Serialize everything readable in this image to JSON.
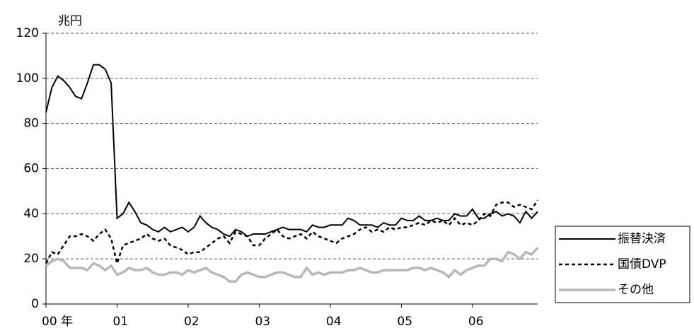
{
  "chart_data": {
    "type": "line",
    "y_label": "兆円",
    "categories": [
      "00 年",
      null,
      null,
      null,
      null,
      null,
      null,
      null,
      null,
      null,
      null,
      null,
      "01",
      null,
      null,
      null,
      null,
      null,
      null,
      null,
      null,
      null,
      null,
      null,
      "02",
      null,
      null,
      null,
      null,
      null,
      null,
      null,
      null,
      null,
      null,
      null,
      "03",
      null,
      null,
      null,
      null,
      null,
      null,
      null,
      null,
      null,
      null,
      null,
      "04",
      null,
      null,
      null,
      null,
      null,
      null,
      null,
      null,
      null,
      null,
      null,
      "05",
      null,
      null,
      null,
      null,
      null,
      null,
      null,
      null,
      null,
      null,
      null,
      "06",
      null,
      null,
      null,
      null,
      null,
      null,
      null,
      null,
      null,
      null,
      null
    ],
    "ylim": [
      0,
      120
    ],
    "yticks": [
      0,
      20,
      40,
      60,
      80,
      100,
      120
    ],
    "grid": true,
    "legend": "bottom-right",
    "series": [
      {
        "name": "振替決済",
        "color": "#000000",
        "style": "solid",
        "values": [
          85,
          96,
          101,
          99,
          96,
          92,
          91,
          98,
          106,
          106,
          104,
          98,
          38,
          40,
          45,
          41,
          36,
          35,
          33,
          32,
          34,
          32,
          33,
          34,
          32,
          34,
          39,
          36,
          34,
          33,
          31,
          30,
          33,
          32,
          30,
          31,
          31,
          31,
          32,
          33,
          34,
          33,
          33,
          33,
          32,
          35,
          34,
          34,
          35,
          35,
          35,
          38,
          37,
          35,
          35,
          35,
          34,
          36,
          35,
          35,
          38,
          37,
          37,
          39,
          37,
          37,
          38,
          37,
          37,
          40,
          39,
          39,
          42,
          38,
          38,
          40,
          41,
          39,
          40,
          39,
          36,
          41,
          38,
          41
        ]
      },
      {
        "name": "国債DVP",
        "color": "#000000",
        "style": "dashed",
        "values": [
          18,
          23,
          22,
          26,
          30,
          30,
          31,
          30,
          28,
          31,
          33,
          29,
          18,
          26,
          27,
          28,
          29,
          31,
          29,
          28,
          29,
          26,
          25,
          24,
          22,
          23,
          23,
          25,
          27,
          29,
          30,
          27,
          32,
          31,
          30,
          26,
          26,
          29,
          31,
          33,
          30,
          29,
          30,
          31,
          29,
          32,
          30,
          29,
          28,
          27,
          29,
          30,
          31,
          33,
          34,
          32,
          33,
          32,
          34,
          33,
          34,
          34,
          35,
          36,
          35,
          37,
          36,
          37,
          35,
          38,
          35,
          36,
          35,
          37,
          40,
          39,
          44,
          45,
          45,
          43,
          44,
          43,
          42,
          46
        ]
      },
      {
        "name": "その他",
        "color": "#b8b8b8",
        "style": "thick",
        "values": [
          17,
          19,
          20,
          19,
          16,
          16,
          16,
          15,
          18,
          17,
          15,
          17,
          13,
          14,
          16,
          15,
          15,
          16,
          14,
          13,
          13,
          14,
          14,
          13,
          15,
          14,
          15,
          16,
          14,
          13,
          12,
          10,
          10,
          13,
          14,
          13,
          12,
          12,
          13,
          14,
          14,
          13,
          12,
          12,
          16,
          13,
          14,
          13,
          14,
          14,
          14,
          15,
          15,
          16,
          15,
          14,
          14,
          15,
          15,
          15,
          15,
          15,
          16,
          16,
          15,
          16,
          15,
          14,
          12,
          15,
          13,
          15,
          16,
          17,
          17,
          20,
          20,
          19,
          23,
          22,
          20,
          23,
          22,
          25
        ]
      }
    ]
  }
}
